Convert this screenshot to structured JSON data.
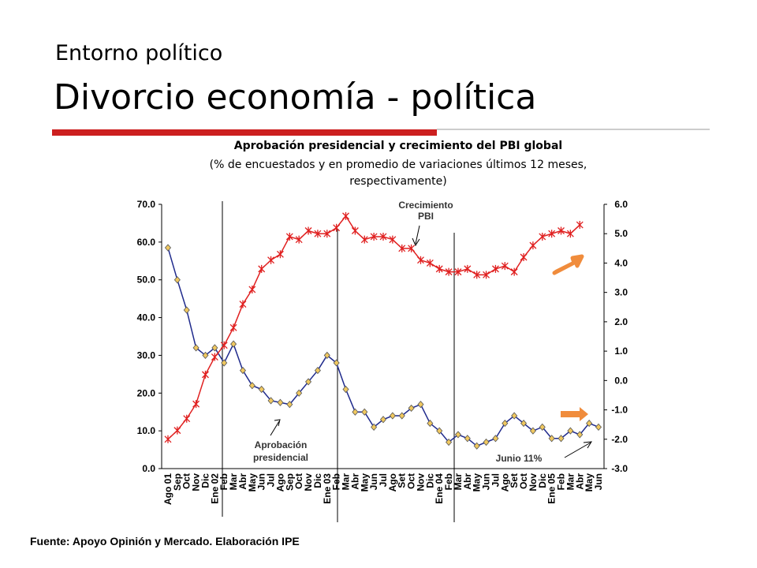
{
  "header": {
    "kicker": "Entorno político",
    "title": "Divorcio economía - política"
  },
  "chart_data": {
    "type": "line",
    "title": "Aprobación presidencial y crecimiento del PBI global",
    "subtitle": "(% de encuestados y en promedio de variaciones últimos 12 meses, respectivamente)",
    "categories": [
      "Ago 01",
      "Sep",
      "Oct",
      "Nov",
      "Dic",
      "Ene 02",
      "Feb",
      "Mar",
      "Abr",
      "May",
      "Jun",
      "Jul",
      "Ago",
      "Sep",
      "Oct",
      "Nov",
      "Dic",
      "Ene 03",
      "Feb",
      "Mar",
      "Abr",
      "May",
      "Jun",
      "Jul",
      "Ago",
      "Set",
      "Oct",
      "Nov",
      "Dic",
      "Ene 04",
      "Feb",
      "Mar",
      "Abr",
      "May",
      "Jun",
      "Jul",
      "Ago",
      "Set",
      "Oct",
      "Nov",
      "Dic",
      "Ene 05",
      "Feb",
      "Mar",
      "Abr",
      "May",
      "Jun"
    ],
    "series": [
      {
        "name": "Aprobación presidencial",
        "color": "#1f2a8c",
        "marker_color": "#f0c860",
        "axis": "y",
        "values": [
          58.5,
          50,
          42,
          32,
          30,
          32,
          28,
          33,
          26,
          22,
          21,
          18,
          17.5,
          17,
          20,
          23,
          26,
          30,
          28,
          21,
          15,
          15,
          11,
          13,
          14,
          14,
          16,
          17,
          12,
          10,
          7,
          9,
          8,
          6,
          7,
          8,
          12,
          14,
          12,
          10,
          11,
          8,
          8,
          10,
          9,
          12,
          11
        ]
      },
      {
        "name": "Crecimiento PBI",
        "color": "#e02020",
        "axis": "y2",
        "values": [
          -2.0,
          -1.7,
          -1.3,
          -0.8,
          0.2,
          0.8,
          1.2,
          1.8,
          2.6,
          3.1,
          3.8,
          4.1,
          4.3,
          4.9,
          4.8,
          5.1,
          5.0,
          5.0,
          5.2,
          5.6,
          5.1,
          4.8,
          4.9,
          4.9,
          4.8,
          4.5,
          4.5,
          4.1,
          4.0,
          3.8,
          3.7,
          3.7,
          3.8,
          3.6,
          3.6,
          3.8,
          3.9,
          3.7,
          4.2,
          4.6,
          4.9,
          5.0,
          5.1,
          5.0,
          5.3,
          null,
          null
        ]
      }
    ],
    "ylim": [
      0,
      70
    ],
    "yticks": [
      {
        "value": 0,
        "label": "0.0"
      },
      {
        "value": 10,
        "label": "10.0"
      },
      {
        "value": 20,
        "label": "20.0"
      },
      {
        "value": 30,
        "label": "30.0"
      },
      {
        "value": 40,
        "label": "40.0"
      },
      {
        "value": 50,
        "label": "50.0"
      },
      {
        "value": 60,
        "label": "60.0"
      },
      {
        "value": 70,
        "label": "70.0"
      }
    ],
    "y2lim": [
      -3,
      6
    ],
    "y2ticks": [
      {
        "value": -3,
        "label": "-3.0"
      },
      {
        "value": -2,
        "label": "-2.0"
      },
      {
        "value": -1,
        "label": "-1.0"
      },
      {
        "value": 0,
        "label": "0.0"
      },
      {
        "value": 1,
        "label": "1.0"
      },
      {
        "value": 2,
        "label": "2.0"
      },
      {
        "value": 3,
        "label": "3.0"
      },
      {
        "value": 4,
        "label": "4.0"
      },
      {
        "value": 5,
        "label": "5.0"
      },
      {
        "value": 6,
        "label": "6.0"
      }
    ],
    "annotations": [
      "Crecimiento PBI",
      "Aprobación presidencial",
      "Junio 11%"
    ],
    "source": "Fuente: Apoyo Opinión y Mercado. Elaboración IPE"
  }
}
